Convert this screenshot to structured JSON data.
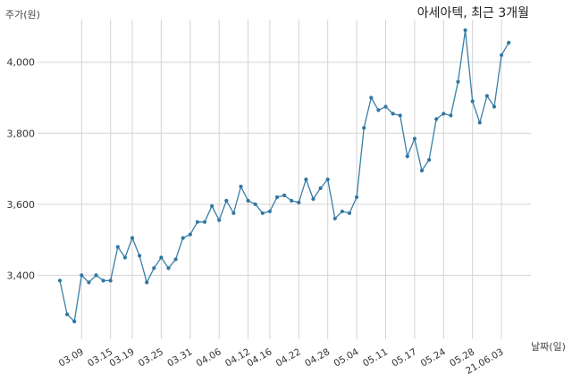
{
  "chart_data": {
    "type": "line",
    "title": "아세아텍, 최근 3개월",
    "xlabel": "날짜(일)",
    "ylabel": "주가(원)",
    "ylim": [
      3220,
      4120
    ],
    "grid": true,
    "y_ticks": [
      3400,
      3600,
      3800,
      4000
    ],
    "y_tick_labels": [
      "3,400",
      "3,600",
      "3,800",
      "4,000"
    ],
    "x_tick_labels": [
      "03.09",
      "03.15",
      "03.19",
      "03.25",
      "03.31",
      "04.06",
      "04.12",
      "04.16",
      "04.22",
      "04.28",
      "05.04",
      "05.11",
      "05.17",
      "05.24",
      "05.28",
      "21.06.03"
    ],
    "x_tick_positions": [
      3,
      7,
      10,
      14,
      18,
      22,
      26,
      29,
      33,
      37,
      41,
      45,
      49,
      53,
      57,
      61
    ],
    "series": [
      {
        "values": [
          3385,
          3290,
          3270,
          3400,
          3380,
          3400,
          3385,
          3385,
          3480,
          3450,
          3505,
          3455,
          3380,
          3420,
          3450,
          3420,
          3445,
          3505,
          3515,
          3550,
          3550,
          3595,
          3555,
          3610,
          3575,
          3650,
          3610,
          3600,
          3575,
          3580,
          3620,
          3625,
          3610,
          3605,
          3670,
          3615,
          3645,
          3670,
          3560,
          3580,
          3575,
          3620,
          3815,
          3900,
          3865,
          3875,
          3855,
          3850,
          3735,
          3785,
          3695,
          3725,
          3840,
          3855,
          3850,
          3945,
          4090,
          3890,
          3830,
          3905,
          3875,
          4020,
          4055
        ]
      }
    ]
  }
}
